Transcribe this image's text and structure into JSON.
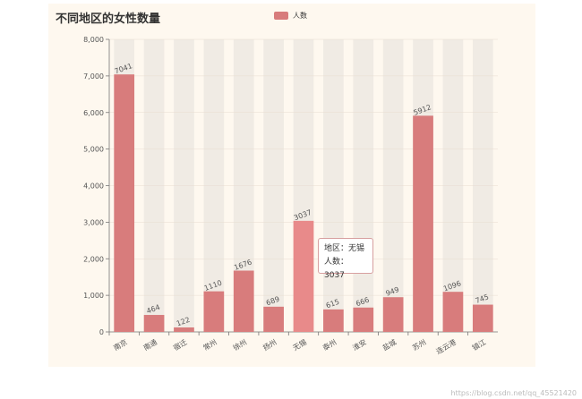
{
  "chart_data": {
    "type": "bar",
    "title": "不同地区的女性数量",
    "legend": [
      "人数"
    ],
    "legend_position": "top-center",
    "categories": [
      "南京",
      "南通",
      "宿迁",
      "常州",
      "徐州",
      "扬州",
      "无锡",
      "泰州",
      "淮安",
      "盐城",
      "苏州",
      "连云港",
      "镇江"
    ],
    "series": [
      {
        "name": "人数",
        "values": [
          7041,
          464,
          122,
          1110,
          1676,
          689,
          3037,
          615,
          666,
          949,
          5912,
          1096,
          745
        ]
      }
    ],
    "yticks": [
      "0",
      "1,000",
      "2,000",
      "3,000",
      "4,000",
      "5,000",
      "6,000",
      "7,000",
      "8,000"
    ],
    "ylim": [
      0,
      8000
    ],
    "highlighted_index": 6,
    "bar_color": "#d87c7c",
    "highlight_color": "#e88a8a",
    "background_bar_color": "#f0ebe4"
  },
  "tooltip": {
    "line1": "地区：无锡",
    "line2": "人数：3037"
  },
  "watermark": "https://blog.csdn.net/qq_45521420"
}
